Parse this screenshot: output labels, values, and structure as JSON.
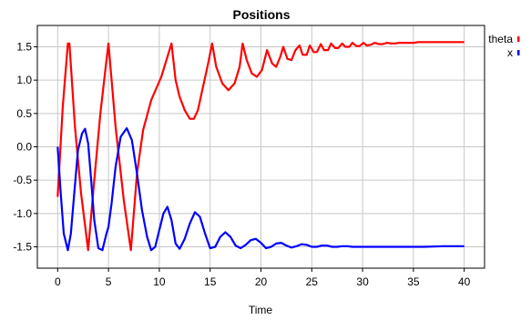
{
  "chart_data": {
    "type": "line",
    "title": "Positions",
    "xlabel": "Time",
    "ylabel": "",
    "xlim": [
      -2.0,
      42.0
    ],
    "ylim": [
      -1.82,
      1.82
    ],
    "xticks": [
      0,
      5,
      10,
      15,
      20,
      25,
      30,
      35,
      40
    ],
    "xtick_labels": [
      "0",
      "5",
      "10",
      "15",
      "20",
      "25",
      "30",
      "35",
      "40"
    ],
    "yticks": [
      1.5,
      1.0,
      0.5,
      0.0,
      -0.5,
      -1.0,
      -1.5
    ],
    "ytick_labels": [
      "1.5",
      "1.0",
      "0.5",
      "0.0",
      "-0.5",
      "-1.0",
      "-1.5"
    ],
    "grid": true,
    "legend_position": "right",
    "series": [
      {
        "name": "theta",
        "color": "#ff0000",
        "x": [
          0.0,
          0.5,
          1.0,
          1.15,
          1.7,
          2.3,
          3.0,
          3.6,
          4.2,
          4.8,
          5.0,
          5.7,
          6.5,
          7.2,
          7.8,
          8.4,
          9.2,
          10.2,
          11.2,
          11.6,
          12.0,
          12.5,
          13.0,
          13.4,
          13.8,
          14.3,
          14.8,
          15.2,
          15.6,
          16.2,
          16.8,
          17.4,
          17.9,
          18.2,
          18.6,
          19.1,
          19.6,
          20.1,
          20.6,
          21.1,
          21.5,
          21.9,
          22.2,
          22.6,
          23.0,
          23.4,
          23.8,
          24.1,
          24.5,
          24.8,
          25.2,
          25.5,
          25.9,
          26.2,
          26.6,
          26.9,
          27.3,
          27.6,
          28.0,
          28.3,
          28.7,
          29.0,
          29.4,
          29.7,
          30.1,
          30.4,
          30.8,
          31.2,
          31.6,
          32.0,
          32.4,
          32.8,
          33.2,
          33.6,
          34.0,
          34.5,
          35.0,
          35.5,
          36.0,
          37.0,
          38.0,
          39.0,
          40.0
        ],
        "y": [
          -0.75,
          0.6,
          1.55,
          1.55,
          0.3,
          -0.7,
          -1.55,
          -0.5,
          0.5,
          1.3,
          1.55,
          0.3,
          -0.8,
          -1.55,
          -0.4,
          0.25,
          0.7,
          1.05,
          1.55,
          1.0,
          0.75,
          0.55,
          0.42,
          0.42,
          0.55,
          0.9,
          1.25,
          1.55,
          1.2,
          0.95,
          0.85,
          0.95,
          1.2,
          1.55,
          1.3,
          1.1,
          1.05,
          1.15,
          1.45,
          1.25,
          1.2,
          1.35,
          1.5,
          1.32,
          1.3,
          1.45,
          1.52,
          1.38,
          1.38,
          1.52,
          1.42,
          1.42,
          1.54,
          1.45,
          1.45,
          1.55,
          1.48,
          1.48,
          1.55,
          1.5,
          1.5,
          1.56,
          1.51,
          1.51,
          1.56,
          1.52,
          1.53,
          1.56,
          1.54,
          1.54,
          1.56,
          1.55,
          1.55,
          1.56,
          1.56,
          1.56,
          1.56,
          1.57,
          1.57,
          1.57,
          1.57,
          1.57,
          1.57
        ]
      },
      {
        "name": "x",
        "color": "#0000ff",
        "x": [
          0.0,
          0.3,
          0.6,
          1.0,
          1.3,
          1.6,
          2.0,
          2.4,
          2.7,
          3.0,
          3.3,
          3.6,
          4.0,
          4.4,
          4.8,
          5.0,
          5.3,
          5.7,
          6.2,
          6.8,
          7.3,
          7.8,
          8.3,
          8.8,
          9.2,
          9.6,
          10.0,
          10.4,
          10.8,
          11.2,
          11.6,
          12.0,
          12.5,
          13.0,
          13.5,
          14.0,
          14.5,
          15.0,
          15.5,
          16.0,
          16.5,
          17.0,
          17.5,
          18.0,
          18.5,
          19.0,
          19.5,
          20.0,
          20.5,
          21.0,
          21.5,
          22.0,
          22.5,
          23.0,
          23.5,
          24.0,
          24.5,
          25.0,
          25.5,
          26.0,
          26.5,
          27.0,
          27.5,
          28.0,
          28.5,
          29.0,
          30.0,
          32.0,
          34.0,
          36.0,
          38.0,
          40.0
        ],
        "y": [
          0.0,
          -0.7,
          -1.3,
          -1.55,
          -1.3,
          -0.75,
          -0.05,
          0.2,
          0.27,
          0.05,
          -0.5,
          -1.1,
          -1.52,
          -1.55,
          -1.3,
          -1.2,
          -0.85,
          -0.3,
          0.15,
          0.28,
          0.1,
          -0.4,
          -0.95,
          -1.35,
          -1.55,
          -1.5,
          -1.25,
          -1.0,
          -0.9,
          -1.1,
          -1.45,
          -1.53,
          -1.38,
          -1.15,
          -0.98,
          -1.05,
          -1.3,
          -1.52,
          -1.5,
          -1.35,
          -1.28,
          -1.35,
          -1.48,
          -1.52,
          -1.47,
          -1.4,
          -1.38,
          -1.44,
          -1.52,
          -1.5,
          -1.45,
          -1.44,
          -1.48,
          -1.51,
          -1.49,
          -1.46,
          -1.47,
          -1.5,
          -1.5,
          -1.48,
          -1.48,
          -1.5,
          -1.5,
          -1.49,
          -1.49,
          -1.5,
          -1.5,
          -1.5,
          -1.5,
          -1.5,
          -1.49,
          -1.49
        ]
      }
    ]
  }
}
